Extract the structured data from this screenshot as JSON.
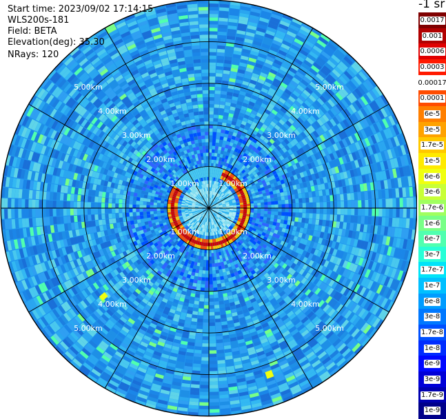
{
  "header": {
    "start_time": "Start time: 2023/09/02 17:14:15",
    "instrument": "WLS200s-181",
    "field": "Field: BETA",
    "elevation": "Elevation(deg): 35.30",
    "nrays": "NRays: 120"
  },
  "colorbar": {
    "unit_label": "-1 sr",
    "labels": [
      "0.0017",
      "0.001",
      "0.0006",
      "0.0003",
      "0.00017",
      "0.0001",
      "6e-5",
      "3e-5",
      "1.7e-5",
      "1e-5",
      "6e-6",
      "3e-6",
      "1.7e-6",
      "1e-6",
      "6e-7",
      "3e-7",
      "1.7e-7",
      "1e-7",
      "6e-8",
      "3e-8",
      "1.7e-8",
      "1e-8",
      "6e-9",
      "3e-9",
      "1.7e-9",
      "1e-9"
    ],
    "colors": [
      "#7f0000",
      "#b00000",
      "#e00000",
      "#ff1a00",
      "#ffffff",
      "#ff4c00",
      "#ff7f00",
      "#ffa200",
      "#ffc800",
      "#ffea00",
      "#f0ff0f",
      "#c8ff37",
      "#a0ff5f",
      "#78ff87",
      "#50ffaf",
      "#28ffd7",
      "#00e4f8",
      "#00c0ff",
      "#009cff",
      "#0078ff",
      "#0050ff",
      "#002cff",
      "#0008ff",
      "#0000d8",
      "#0000b0",
      "#00008a"
    ]
  },
  "chart_data": {
    "type": "heatmap",
    "projection": "polar PPI scan",
    "field": "BETA",
    "elevation_deg": 35.3,
    "n_rays": 120,
    "range_ring_labels": [
      "1.00km",
      "2.00km",
      "3.00km",
      "4.00km",
      "5.00km"
    ],
    "range_rings_km": [
      1,
      2,
      3,
      4,
      5
    ],
    "max_range_km": 5.0,
    "azimuth_spokes_deg": [
      0,
      30,
      60,
      90,
      120,
      150,
      180,
      210,
      240,
      270,
      300,
      330
    ],
    "color_scale": "log",
    "value_range": [
      1e-09,
      0.0017
    ],
    "features": [
      {
        "description": "high-backscatter ring",
        "range_km": 0.85,
        "value": "1e-4 to 1e-3"
      },
      {
        "description": "background",
        "value": "1e-8 to 1e-7"
      }
    ]
  }
}
